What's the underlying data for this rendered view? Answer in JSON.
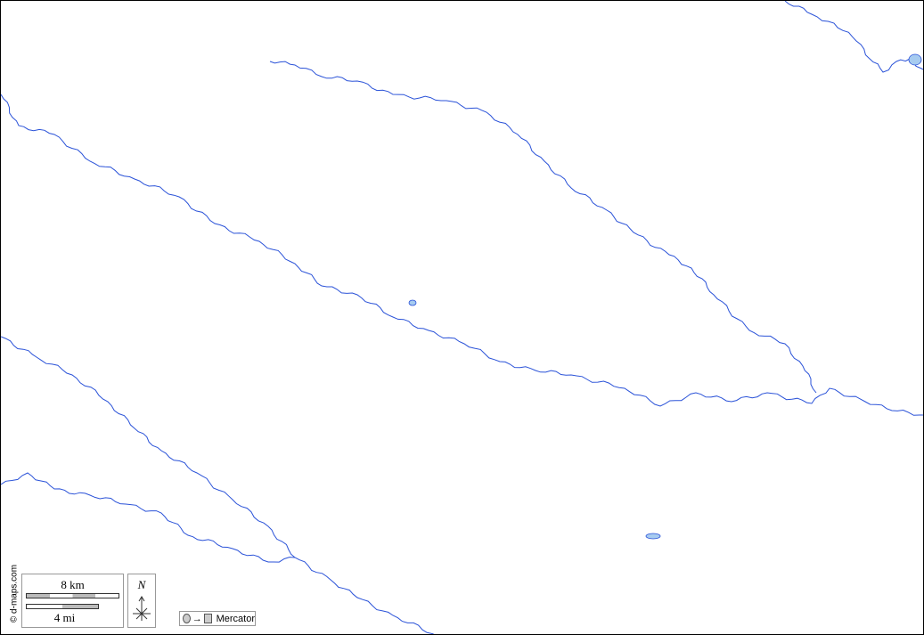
{
  "map": {
    "copyright": "© d-maps.com",
    "scale": {
      "km_label": "8 km",
      "mi_label": "4 mi"
    },
    "north_label": "N",
    "projection": {
      "label": "Mercator",
      "icon": "circle-to-square-icon"
    },
    "colors": {
      "river": "#2a52d8",
      "lake_fill": "#a6cbf0",
      "border": "#000000",
      "background": "#ffffff"
    }
  }
}
